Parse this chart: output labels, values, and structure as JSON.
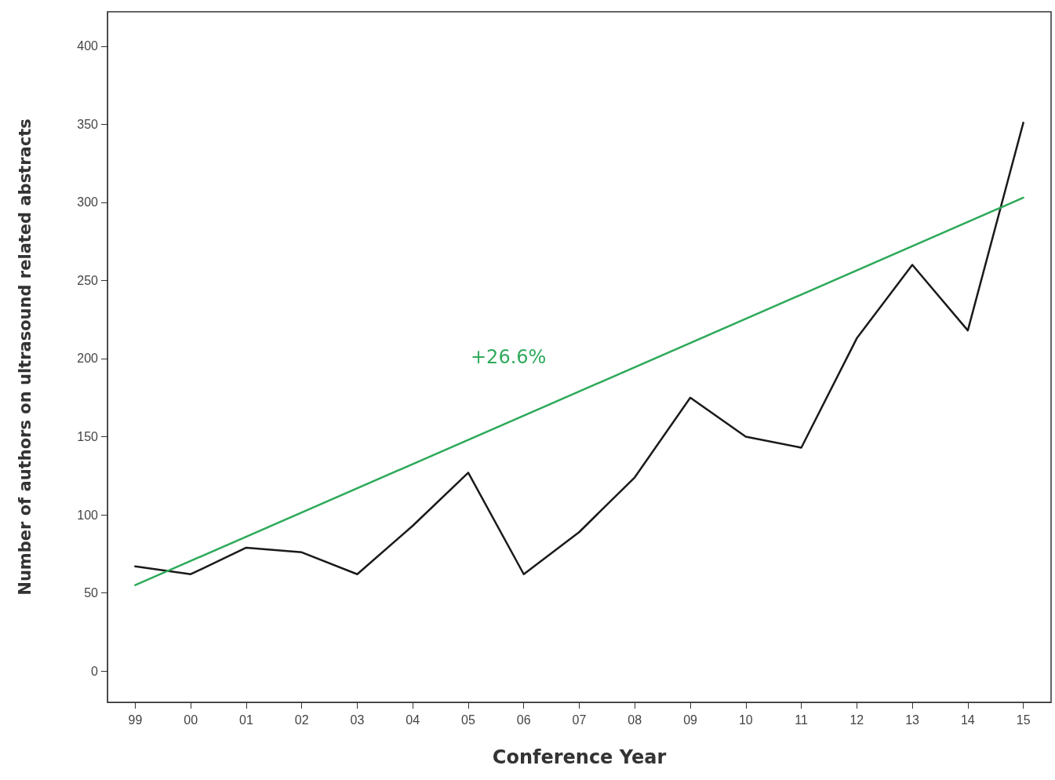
{
  "chart_data": {
    "type": "line",
    "xlabel": "Conference Year",
    "ylabel": "Number of authors on ultrasound related abstracts",
    "categories": [
      "99",
      "00",
      "01",
      "02",
      "03",
      "04",
      "05",
      "06",
      "07",
      "08",
      "09",
      "10",
      "11",
      "12",
      "13",
      "14",
      "15"
    ],
    "series": [
      {
        "color": "#1a1a1a",
        "values": [
          67,
          62,
          79,
          76,
          62,
          93,
          127,
          62,
          89,
          124,
          175,
          150,
          143,
          213,
          260,
          218,
          351
        ]
      },
      {
        "type": "line",
        "color": "#2eaa5a",
        "x": [
          "99",
          "15"
        ],
        "values": [
          55,
          303
        ]
      }
    ],
    "annotations": [
      "+26.6%"
    ],
    "ylim": [
      -20,
      422
    ],
    "yticks": [
      0,
      50,
      100,
      150,
      200,
      250,
      300,
      350,
      400
    ],
    "grid": false,
    "marker": "none",
    "line_style": "solid"
  }
}
